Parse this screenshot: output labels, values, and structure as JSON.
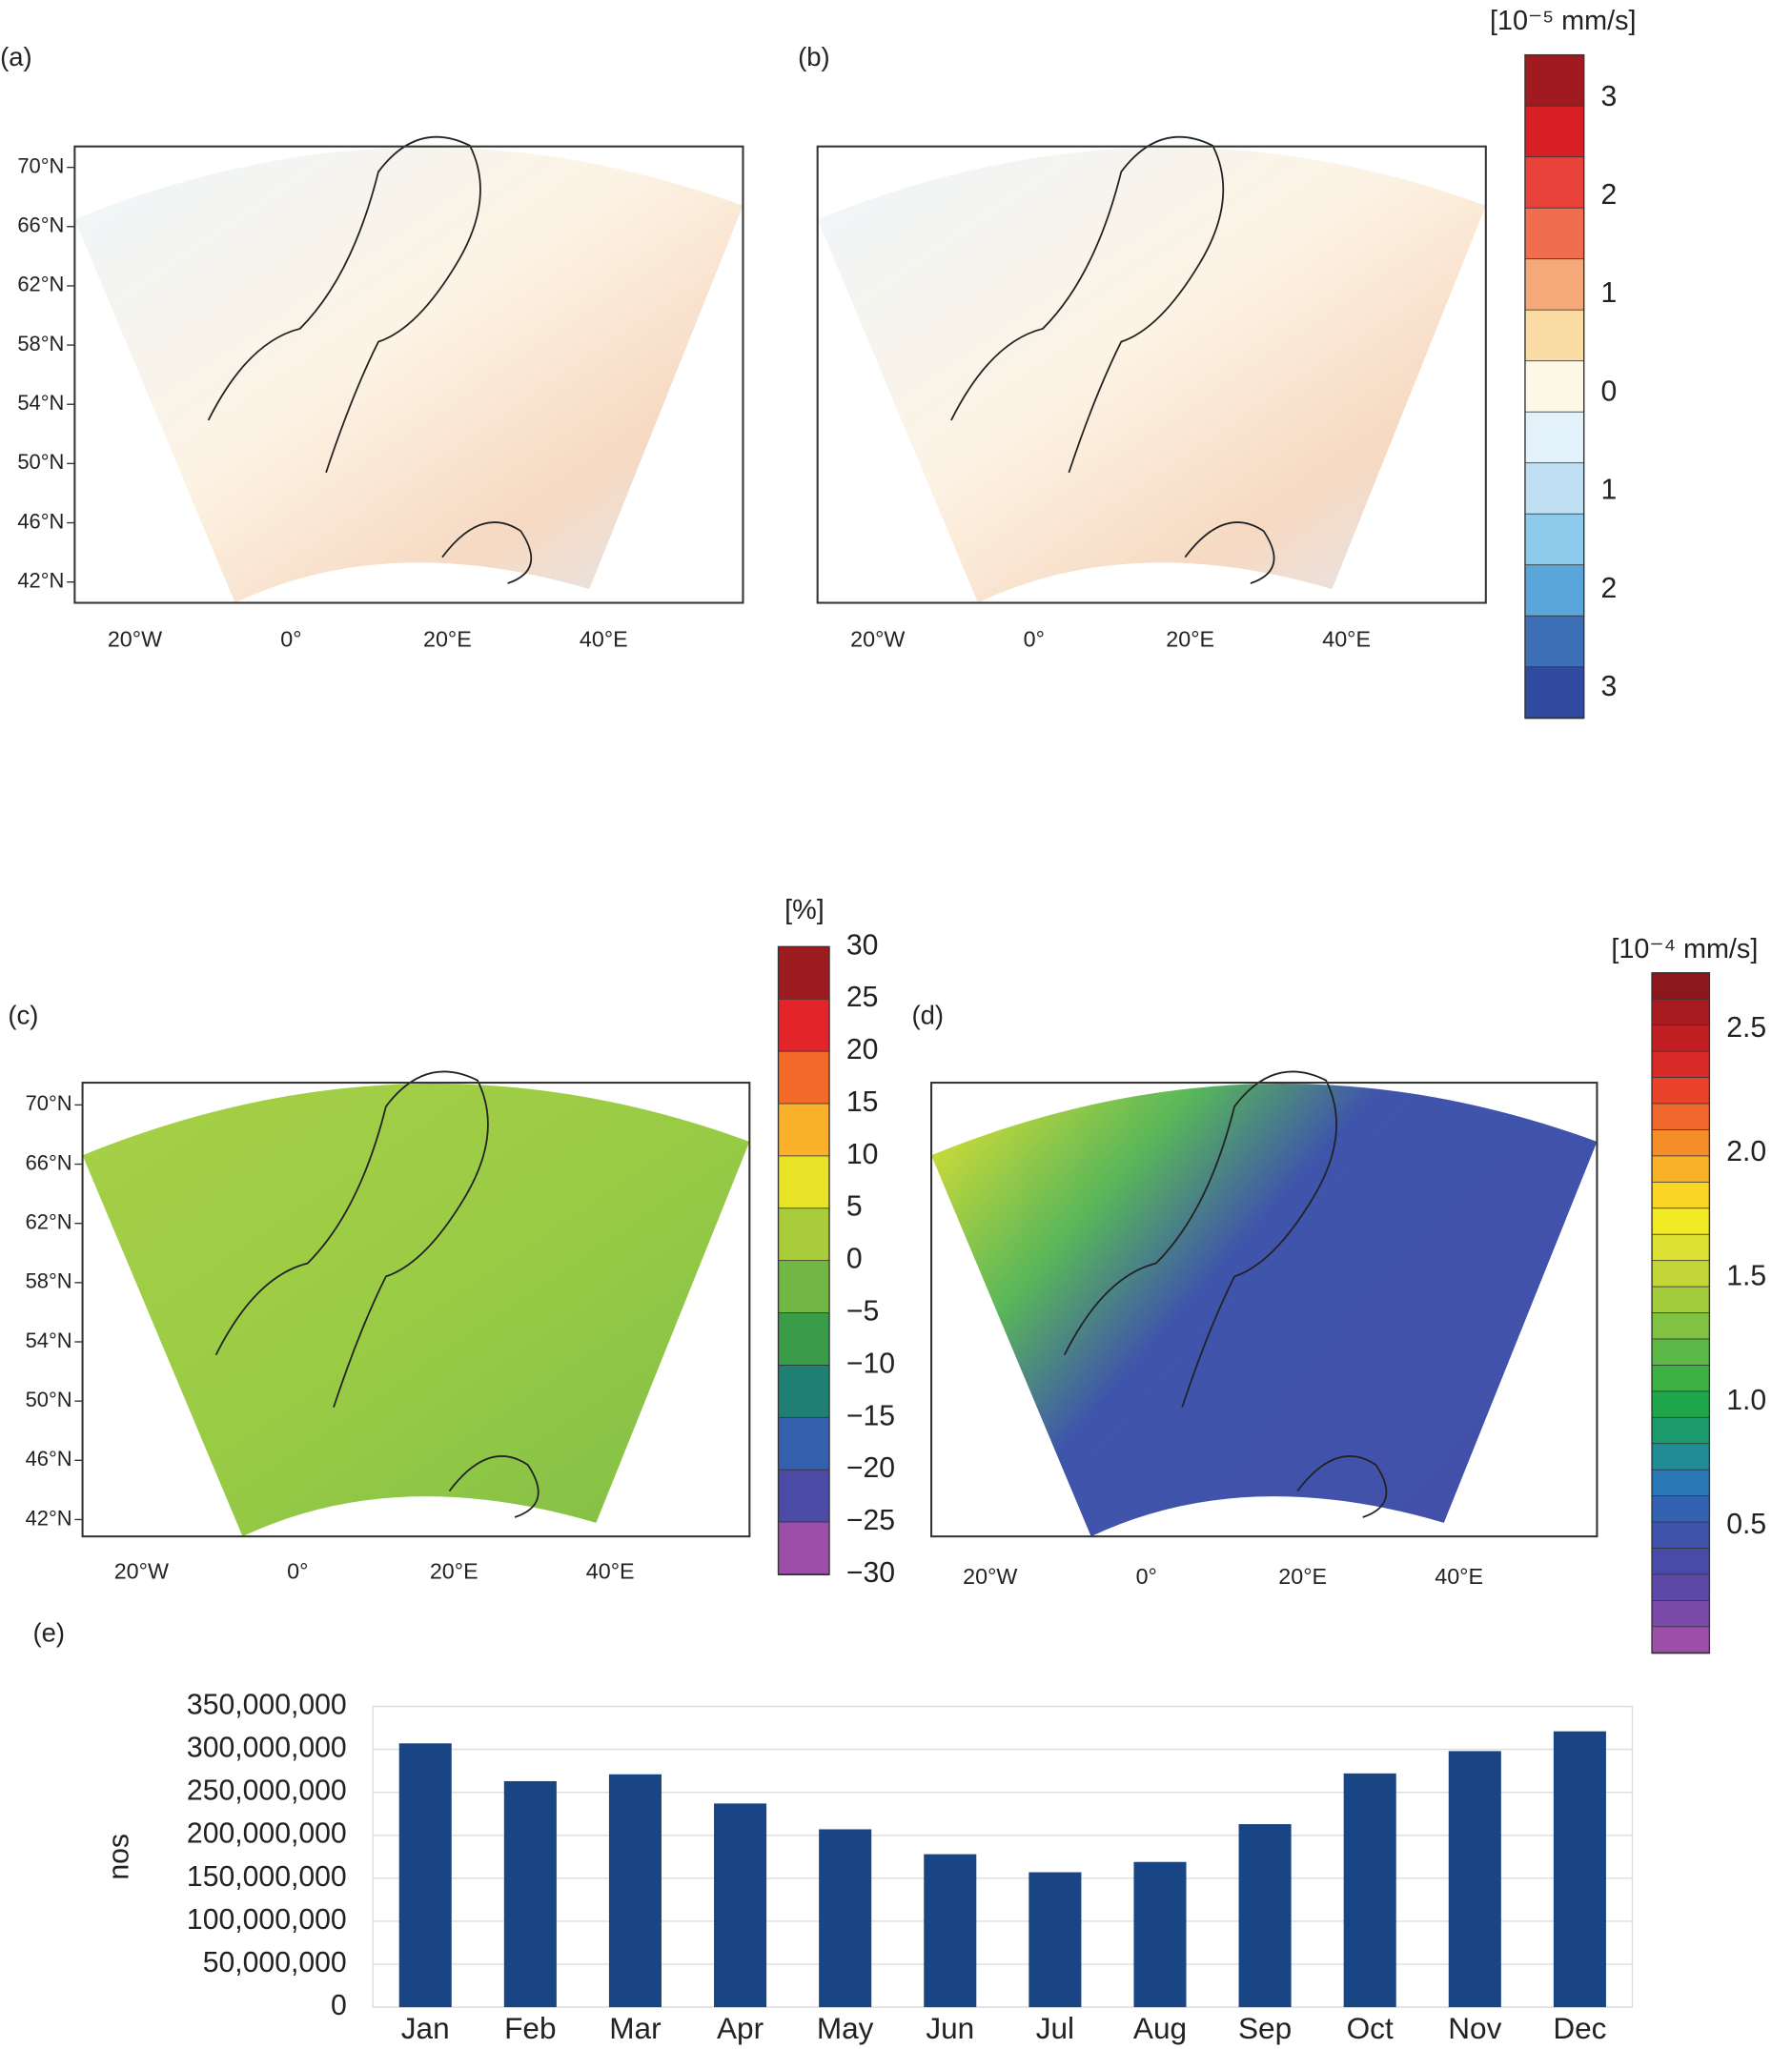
{
  "maps": [
    {
      "label": "(a)",
      "lat_labels": [
        "70°N",
        "66°N",
        "62°N",
        "58°N",
        "54°N",
        "50°N",
        "46°N",
        "42°N"
      ],
      "lon_labels": [
        "20°W",
        "0°",
        "20°E",
        "40°E"
      ]
    },
    {
      "label": "(b)",
      "lon_labels": [
        "20°W",
        "0°",
        "20°E",
        "40°E"
      ]
    },
    {
      "label": "(c)",
      "lat_labels": [
        "70°N",
        "66°N",
        "62°N",
        "58°N",
        "54°N",
        "50°N",
        "46°N",
        "42°N"
      ],
      "lon_labels": [
        "20°W",
        "0°",
        "20°E",
        "40°E"
      ]
    },
    {
      "label": "(d)",
      "lon_labels": [
        "20°W",
        "0°",
        "20°E",
        "40°E"
      ]
    }
  ],
  "colorbars": [
    {
      "unit": "[10⁻⁵ mm/s]",
      "labels": [
        "3",
        "2",
        "1",
        "0",
        "1",
        "2",
        "3"
      ],
      "colors": [
        "#a01a1f",
        "#d91f26",
        "#e8423a",
        "#f06e4f",
        "#f5a878",
        "#fbdca5",
        "#fdf8e6",
        "#e3f1fa",
        "#bfe0f2",
        "#8dcbec",
        "#5aa6da",
        "#3c6fb6",
        "#2f4a9e"
      ]
    },
    {
      "unit": "[%]",
      "labels": [
        "30",
        "25",
        "20",
        "15",
        "10",
        "5",
        "0",
        "−5",
        "−10",
        "−15",
        "−20",
        "−25",
        "−30"
      ],
      "colors": [
        "#9c1c1f",
        "#e3242b",
        "#f26a2a",
        "#fbb12a",
        "#e7e326",
        "#a9cc3a",
        "#72b746",
        "#3a9b48",
        "#1f7f73",
        "#3560ad",
        "#4b4aa4",
        "#9b4fa8"
      ]
    },
    {
      "unit": "[10⁻⁴ mm/s]",
      "labels": [
        "2.5",
        "2.0",
        "1.5",
        "1.0",
        "0.5"
      ],
      "colors": [
        "#8c171c",
        "#a81b20",
        "#c21f24",
        "#d92a2a",
        "#e8432a",
        "#ef672a",
        "#f58d29",
        "#f9b227",
        "#fcd524",
        "#f3ea26",
        "#dde232",
        "#c2d638",
        "#a2cc3c",
        "#80c242",
        "#5cb947",
        "#3cb043",
        "#1fa64a",
        "#1b9a6c",
        "#208c96",
        "#2a78b6",
        "#3462b3",
        "#3f52ac",
        "#4a4aa8",
        "#5c48a6",
        "#7a4aa8",
        "#9b4fa8"
      ]
    }
  ],
  "chart_data": {
    "type": "bar",
    "label": "(e)",
    "y_label": "nos",
    "categories": [
      "Jan",
      "Feb",
      "Mar",
      "Apr",
      "May",
      "Jun",
      "Jul",
      "Aug",
      "Sep",
      "Oct",
      "Nov",
      "Dec"
    ],
    "values": [
      307000000,
      263000000,
      271000000,
      237000000,
      207000000,
      178000000,
      157000000,
      169000000,
      213000000,
      272000000,
      298000000,
      321000000
    ],
    "color": "#1a4585",
    "ylim": [
      0,
      350000000
    ],
    "yticks": [
      0,
      {
        "value": 50000000,
        "label": "50,000,000"
      },
      {
        "value": 100000000,
        "label": "100,000,000"
      },
      {
        "value": 150000000,
        "label": "150,000,000"
      },
      {
        "value": 200000000,
        "label": "200,000,000"
      },
      {
        "value": 250000000,
        "label": "250,000,000"
      },
      {
        "value": 300000000,
        "label": "300,000,000"
      },
      {
        "value": 350000000,
        "label": "350,000,000"
      }
    ],
    "grid": true
  }
}
